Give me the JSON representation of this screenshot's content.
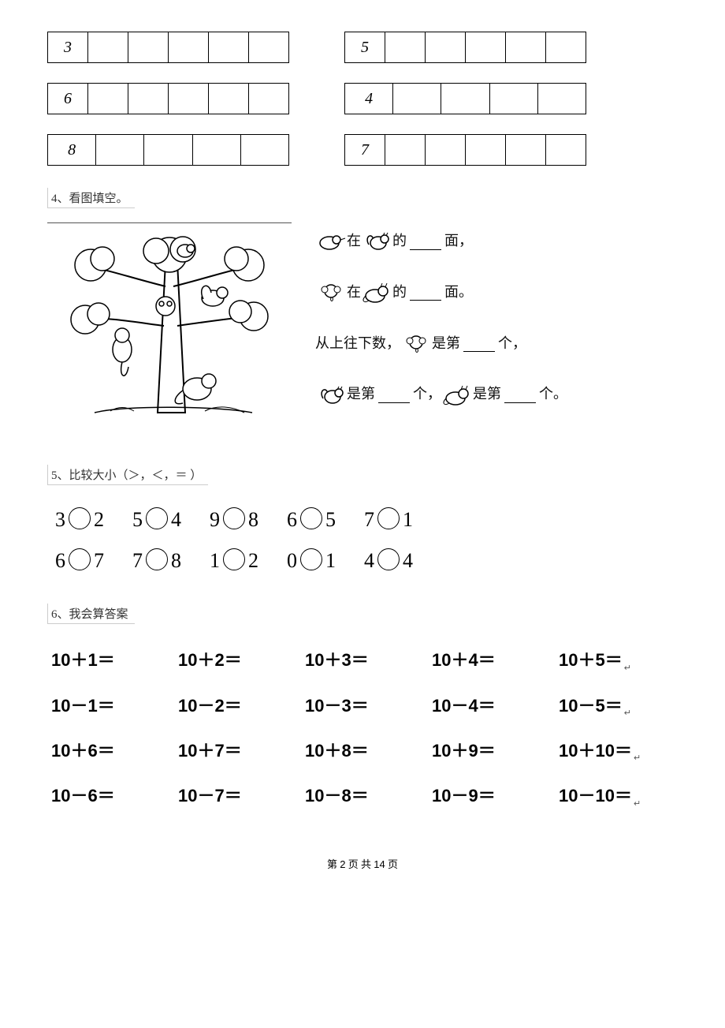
{
  "tables_left": [
    {
      "first": "3",
      "cols": 6
    },
    {
      "first": "6",
      "cols": 6
    },
    {
      "first": "8",
      "cols": 5
    }
  ],
  "tables_right": [
    {
      "first": "5",
      "cols": 6
    },
    {
      "first": "4",
      "cols": 5
    },
    {
      "first": "7",
      "cols": 6
    }
  ],
  "q4": {
    "label": "4、看图填空。",
    "line1_mid": "在",
    "line1_end": "的",
    "line1_tail": "面，",
    "line2_mid": "在",
    "line2_end": "的",
    "line2_tail": "面。",
    "line3_pre": "从上往下数，",
    "line3_mid": "是第",
    "line3_tail": "个，",
    "line4_pre": "",
    "line4_a_mid": "是第",
    "line4_a_tail": "个，",
    "line4_b_mid": "是第",
    "line4_b_tail": "个。"
  },
  "q5": {
    "label": "5、比较大小（＞，＜，＝   ）",
    "rows": [
      [
        {
          "a": "3",
          "b": "2"
        },
        {
          "a": "5",
          "b": "4"
        },
        {
          "a": "9",
          "b": "8"
        },
        {
          "a": "6",
          "b": "5"
        },
        {
          "a": "7",
          "b": "1"
        }
      ],
      [
        {
          "a": "6",
          "b": "7"
        },
        {
          "a": "7",
          "b": "8"
        },
        {
          "a": "1",
          "b": "2"
        },
        {
          "a": "0",
          "b": "1"
        },
        {
          "a": "4",
          "b": "4"
        }
      ]
    ]
  },
  "q6": {
    "label": "6、我会算答案",
    "rows": [
      [
        "10＋1＝",
        "10＋2＝",
        "10＋3＝",
        "10＋4＝",
        "10＋5＝"
      ],
      [
        "10－1＝",
        "10－2＝",
        "10－3＝",
        "10－4＝",
        "10－5＝"
      ],
      [
        "10＋6＝",
        "10＋7＝",
        "10＋8＝",
        "10＋9＝",
        "10＋10＝"
      ],
      [
        "10－6＝",
        "10－7＝",
        "10－8＝",
        "10－9＝",
        "10－10＝"
      ]
    ]
  },
  "footer": {
    "pre": "第 ",
    "page": "2",
    "mid": " 页 共 ",
    "total": "14",
    "post": " 页"
  }
}
